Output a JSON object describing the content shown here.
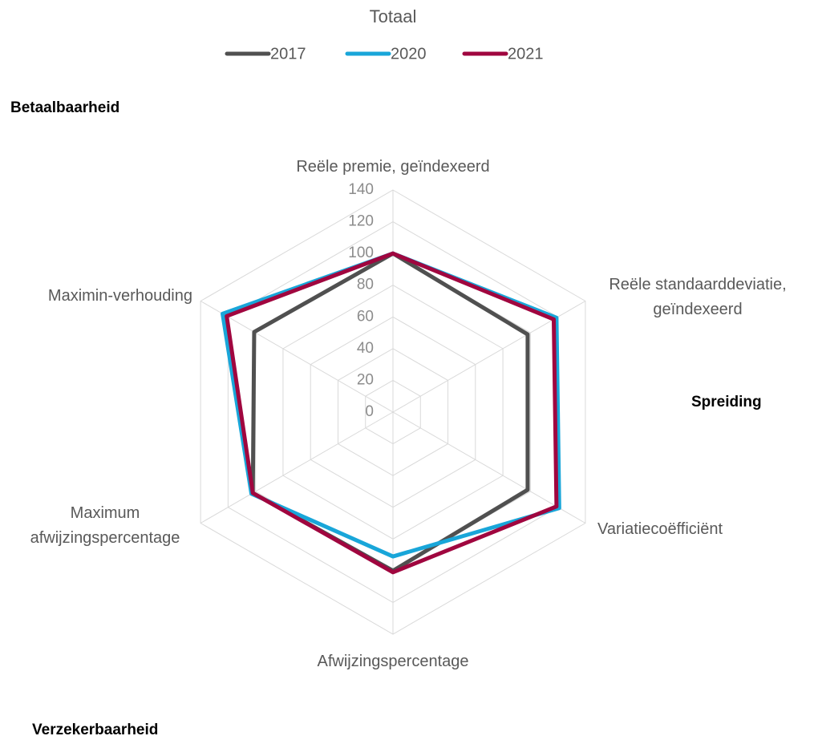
{
  "chart_data": {
    "type": "radar",
    "title": "Totaal",
    "categories": [
      "Reële premie, geïndexeerd",
      "Reële standaarddeviatie,\ngeïndexeerd",
      "Variatiecoëfficiënt",
      "Afwijzingspercentage",
      "Maximum\nafwijzingspercentage",
      "Maximin-verhouding"
    ],
    "series": [
      {
        "name": "2017",
        "color": "#505050",
        "values": [
          100,
          98,
          98,
          100,
          102,
          101
        ]
      },
      {
        "name": "2020",
        "color": "#19a6d9",
        "values": [
          100,
          119,
          121,
          91,
          103,
          124
        ]
      },
      {
        "name": "2021",
        "color": "#a0063f",
        "values": [
          100,
          117,
          119,
          101,
          102,
          121
        ]
      }
    ],
    "ylim": [
      0,
      140
    ],
    "yticks": [
      0,
      20,
      40,
      60,
      80,
      100,
      120,
      140
    ],
    "grid": true,
    "legend": "top",
    "annotations": [
      "Betaalbaarheid",
      "Spreiding",
      "Verzekerbaarheid"
    ]
  }
}
